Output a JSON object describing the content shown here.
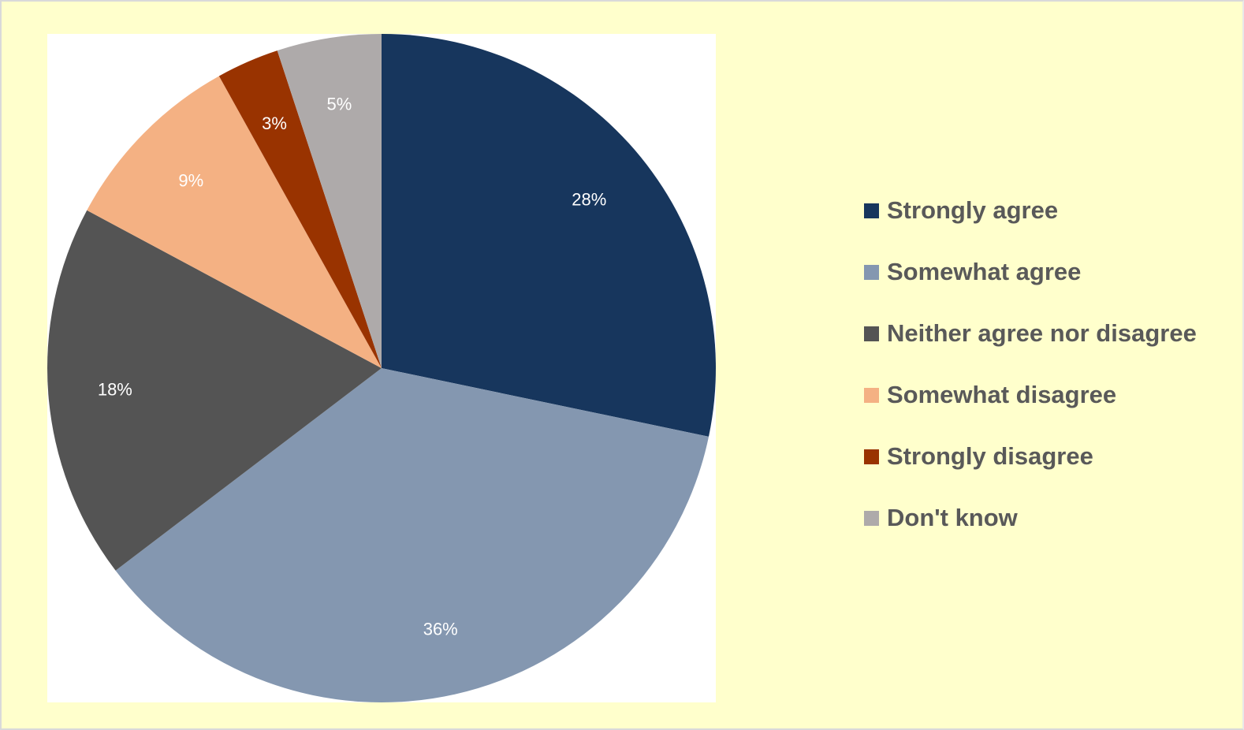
{
  "chart_data": {
    "type": "pie",
    "title": "",
    "start_angle_deg": 0,
    "direction": "clockwise",
    "legend_position": "right",
    "slices": [
      {
        "name": "Strongly agree",
        "value": 28,
        "label": "28%",
        "color": "#17365d"
      },
      {
        "name": "Somewhat agree",
        "value": 36,
        "label": "36%",
        "color": "#8497b0"
      },
      {
        "name": "Neither agree nor disagree",
        "value": 18,
        "label": "18%",
        "color": "#545454"
      },
      {
        "name": "Somewhat disagree",
        "value": 9,
        "label": "9%",
        "color": "#f4b183"
      },
      {
        "name": "Strongly disagree",
        "value": 3,
        "label": "3%",
        "color": "#993300"
      },
      {
        "name": "Don't know",
        "value": 5,
        "label": "5%",
        "color": "#aeaaaa"
      }
    ]
  },
  "colors": {
    "background": "#ffffcc",
    "plot_area": "#ffffff",
    "legend_text": "#595959",
    "data_label": "#ffffff"
  }
}
